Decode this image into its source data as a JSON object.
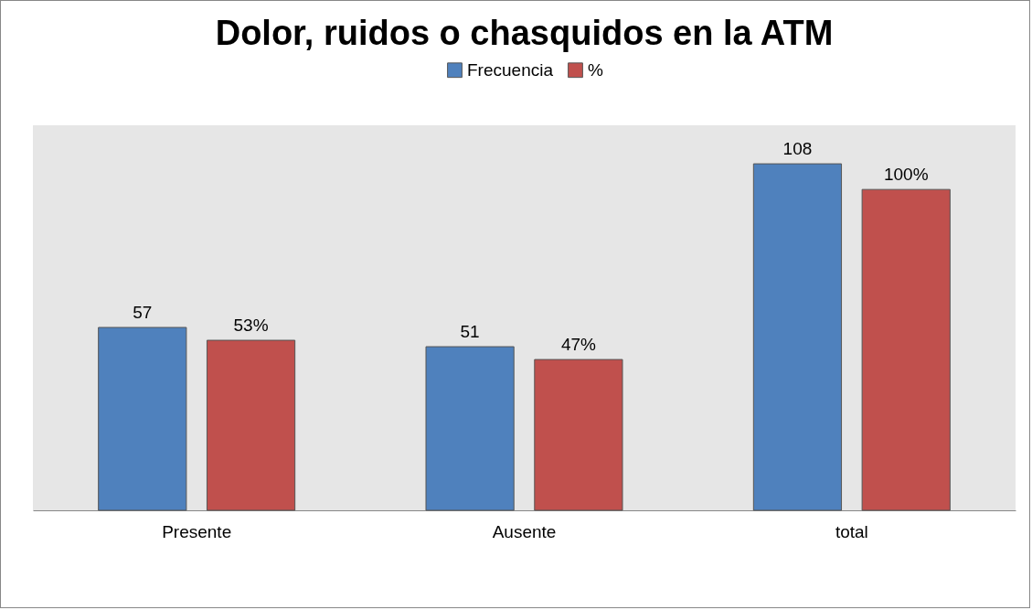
{
  "chart_data": {
    "type": "bar",
    "title": "Dolor, ruidos o chasquidos en la ATM",
    "categories": [
      "Presente",
      "Ausente",
      "total"
    ],
    "series": [
      {
        "name": "Frecuencia",
        "color": "#4f81bd",
        "values": [
          57,
          51,
          108
        ],
        "value_labels": [
          "57",
          "51",
          "108"
        ]
      },
      {
        "name": "%",
        "color": "#c0504d",
        "values": [
          53,
          47,
          100
        ],
        "value_labels": [
          "53%",
          "47%",
          "100%"
        ]
      }
    ],
    "legend": "top"
  }
}
